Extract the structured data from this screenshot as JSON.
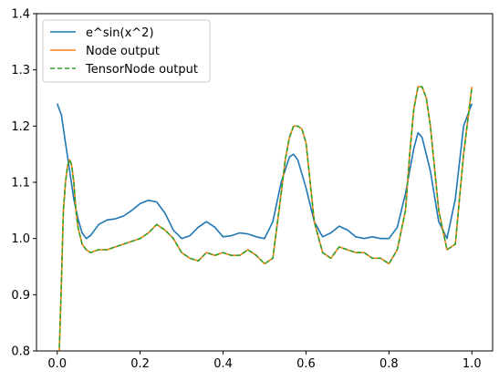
{
  "chart_data": {
    "type": "line",
    "title": "",
    "xlabel": "",
    "ylabel": "",
    "xlim": [
      -0.05,
      1.05
    ],
    "ylim": [
      0.8,
      1.4
    ],
    "xticks": [
      0.0,
      0.2,
      0.4,
      0.6,
      0.8,
      1.0
    ],
    "yticks": [
      0.8,
      0.9,
      1.0,
      1.1,
      1.2,
      1.3,
      1.4
    ],
    "xtick_labels": [
      "0.0",
      "0.2",
      "0.4",
      "0.6",
      "0.8",
      "1.0"
    ],
    "ytick_labels": [
      "0.8",
      "0.9",
      "1.0",
      "1.1",
      "1.2",
      "1.3",
      "1.4"
    ],
    "grid": false,
    "legend_position": "top-left",
    "series": [
      {
        "name": "e^sin(x^2)",
        "color": "#1f77b4",
        "style": "solid",
        "x": [
          0.0,
          0.01,
          0.02,
          0.03,
          0.04,
          0.05,
          0.06,
          0.07,
          0.08,
          0.1,
          0.12,
          0.14,
          0.16,
          0.18,
          0.2,
          0.22,
          0.24,
          0.26,
          0.28,
          0.3,
          0.32,
          0.34,
          0.36,
          0.38,
          0.4,
          0.42,
          0.44,
          0.46,
          0.48,
          0.5,
          0.52,
          0.54,
          0.56,
          0.57,
          0.58,
          0.6,
          0.62,
          0.64,
          0.66,
          0.68,
          0.7,
          0.72,
          0.74,
          0.76,
          0.78,
          0.8,
          0.82,
          0.84,
          0.86,
          0.87,
          0.88,
          0.9,
          0.92,
          0.94,
          0.96,
          0.98,
          1.0
        ],
        "y": [
          1.24,
          1.22,
          1.17,
          1.12,
          1.07,
          1.035,
          1.01,
          1.0,
          1.005,
          1.025,
          1.033,
          1.035,
          1.04,
          1.05,
          1.062,
          1.068,
          1.065,
          1.045,
          1.015,
          1.0,
          1.005,
          1.02,
          1.03,
          1.02,
          1.003,
          1.005,
          1.01,
          1.008,
          1.003,
          1.0,
          1.03,
          1.1,
          1.145,
          1.15,
          1.14,
          1.09,
          1.03,
          1.003,
          1.01,
          1.022,
          1.015,
          1.003,
          1.0,
          1.003,
          1.0,
          1.0,
          1.02,
          1.08,
          1.16,
          1.188,
          1.18,
          1.12,
          1.03,
          1.0,
          1.07,
          1.2,
          1.24
        ]
      },
      {
        "name": "Node output",
        "color": "#ff7f0e",
        "style": "solid",
        "x": [
          0.0,
          0.005,
          0.01,
          0.015,
          0.02,
          0.025,
          0.03,
          0.035,
          0.04,
          0.045,
          0.05,
          0.06,
          0.07,
          0.08,
          0.1,
          0.12,
          0.14,
          0.16,
          0.18,
          0.2,
          0.22,
          0.24,
          0.26,
          0.28,
          0.3,
          0.32,
          0.34,
          0.36,
          0.38,
          0.4,
          0.42,
          0.44,
          0.46,
          0.48,
          0.5,
          0.52,
          0.54,
          0.55,
          0.56,
          0.57,
          0.58,
          0.59,
          0.6,
          0.62,
          0.64,
          0.66,
          0.68,
          0.7,
          0.72,
          0.74,
          0.76,
          0.78,
          0.8,
          0.82,
          0.84,
          0.85,
          0.86,
          0.87,
          0.88,
          0.89,
          0.9,
          0.92,
          0.94,
          0.96,
          0.98,
          1.0
        ],
        "y": [
          0.78,
          0.8,
          0.92,
          1.05,
          1.1,
          1.13,
          1.14,
          1.13,
          1.1,
          1.05,
          1.02,
          0.99,
          0.98,
          0.975,
          0.98,
          0.98,
          0.985,
          0.99,
          0.995,
          1.0,
          1.01,
          1.025,
          1.015,
          1.0,
          0.975,
          0.965,
          0.96,
          0.975,
          0.97,
          0.975,
          0.97,
          0.97,
          0.98,
          0.97,
          0.955,
          0.965,
          1.08,
          1.14,
          1.18,
          1.2,
          1.2,
          1.195,
          1.17,
          1.03,
          0.975,
          0.965,
          0.985,
          0.98,
          0.975,
          0.975,
          0.965,
          0.965,
          0.955,
          0.98,
          1.05,
          1.15,
          1.23,
          1.27,
          1.27,
          1.25,
          1.2,
          1.05,
          0.98,
          0.99,
          1.15,
          1.27
        ]
      },
      {
        "name": "TensorNode output",
        "color": "#2ca02c",
        "style": "dashed",
        "x": [
          0.0,
          0.005,
          0.01,
          0.015,
          0.02,
          0.025,
          0.03,
          0.035,
          0.04,
          0.045,
          0.05,
          0.06,
          0.07,
          0.08,
          0.1,
          0.12,
          0.14,
          0.16,
          0.18,
          0.2,
          0.22,
          0.24,
          0.26,
          0.28,
          0.3,
          0.32,
          0.34,
          0.36,
          0.38,
          0.4,
          0.42,
          0.44,
          0.46,
          0.48,
          0.5,
          0.52,
          0.54,
          0.55,
          0.56,
          0.57,
          0.58,
          0.59,
          0.6,
          0.62,
          0.64,
          0.66,
          0.68,
          0.7,
          0.72,
          0.74,
          0.76,
          0.78,
          0.8,
          0.82,
          0.84,
          0.85,
          0.86,
          0.87,
          0.88,
          0.89,
          0.9,
          0.92,
          0.94,
          0.96,
          0.98,
          1.0
        ],
        "y": [
          0.78,
          0.8,
          0.92,
          1.05,
          1.1,
          1.13,
          1.14,
          1.13,
          1.1,
          1.05,
          1.02,
          0.99,
          0.98,
          0.975,
          0.98,
          0.98,
          0.985,
          0.99,
          0.995,
          1.0,
          1.01,
          1.025,
          1.015,
          1.0,
          0.975,
          0.965,
          0.96,
          0.975,
          0.97,
          0.975,
          0.97,
          0.97,
          0.98,
          0.97,
          0.955,
          0.965,
          1.08,
          1.14,
          1.18,
          1.2,
          1.2,
          1.195,
          1.17,
          1.03,
          0.975,
          0.965,
          0.985,
          0.98,
          0.975,
          0.975,
          0.965,
          0.965,
          0.955,
          0.98,
          1.05,
          1.15,
          1.23,
          1.27,
          1.27,
          1.25,
          1.2,
          1.05,
          0.98,
          0.99,
          1.15,
          1.27
        ]
      }
    ]
  }
}
